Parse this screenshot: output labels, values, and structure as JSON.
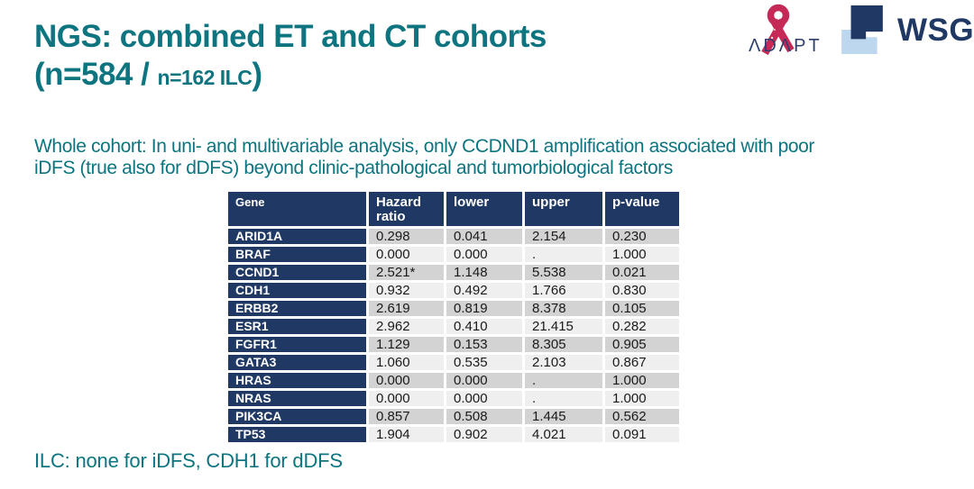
{
  "colors": {
    "teal": "#0D7480",
    "navy": "#1F3864",
    "row_dark_gray": "#D3D3D3",
    "row_light_gray": "#EFEFEF",
    "wsg_light_blue": "#BDD7EE",
    "ribbon_pink": "#C42A55"
  },
  "header": {
    "title_line1": "NGS: combined ET and CT cohorts",
    "title_line2_prefix": "(n=584 / ",
    "title_line2_small": "n=162 ILC",
    "title_line2_suffix": ")"
  },
  "logos": {
    "adapt": {
      "label": "ΛDΛPT",
      "icon": "awareness-ribbon-icon"
    },
    "wsg": {
      "label": "WSG",
      "icon": "wsg-squares-icon"
    }
  },
  "subtitle": {
    "line1": "Whole cohort: In uni- and multivariable analysis, only CCDND1 amplification associated with poor",
    "line2": "iDFS (true also for dDFS) beyond clinic-pathological and tumorbiological factors"
  },
  "table": {
    "columns": [
      "Gene",
      "Hazard ratio",
      "lower",
      "upper",
      "p-value"
    ],
    "rows": [
      {
        "gene": "ARID1A",
        "hr": "0.298",
        "lower": "0.041",
        "upper": "2.154",
        "p": "0.230"
      },
      {
        "gene": "BRAF",
        "hr": "0.000",
        "lower": "0.000",
        "upper": ".",
        "p": "1.000"
      },
      {
        "gene": "CCND1",
        "hr": "2.521*",
        "lower": "1.148",
        "upper": "5.538",
        "p": "0.021"
      },
      {
        "gene": "CDH1",
        "hr": "0.932",
        "lower": "0.492",
        "upper": "1.766",
        "p": "0.830"
      },
      {
        "gene": "ERBB2",
        "hr": "2.619",
        "lower": "0.819",
        "upper": "8.378",
        "p": "0.105"
      },
      {
        "gene": "ESR1",
        "hr": "2.962",
        "lower": "0.410",
        "upper": "21.415",
        "p": "0.282"
      },
      {
        "gene": "FGFR1",
        "hr": "1.129",
        "lower": "0.153",
        "upper": "8.305",
        "p": "0.905"
      },
      {
        "gene": "GATA3",
        "hr": "1.060",
        "lower": "0.535",
        "upper": "2.103",
        "p": "0.867"
      },
      {
        "gene": "HRAS",
        "hr": "0.000",
        "lower": "0.000",
        "upper": ".",
        "p": "1.000"
      },
      {
        "gene": "NRAS",
        "hr": "0.000",
        "lower": "0.000",
        "upper": ".",
        "p": "1.000"
      },
      {
        "gene": "PIK3CA",
        "hr": "0.857",
        "lower": "0.508",
        "upper": "1.445",
        "p": "0.562"
      },
      {
        "gene": "TP53",
        "hr": "1.904",
        "lower": "0.902",
        "upper": "4.021",
        "p": "0.091"
      }
    ]
  },
  "footer": {
    "note": "ILC: none for iDFS, CDH1 for dDFS"
  }
}
